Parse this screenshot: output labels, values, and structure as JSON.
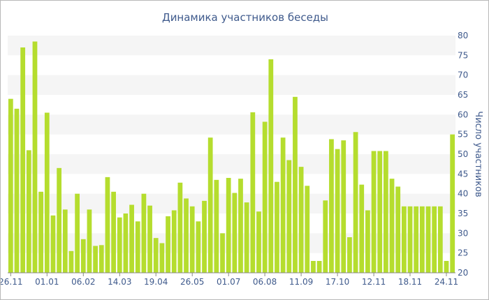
{
  "chart_data": {
    "type": "bar",
    "title": "Динамика участников беседы",
    "xlabel": "",
    "ylabel": "Число участников",
    "ylim": [
      20,
      80
    ],
    "yticks": [
      20,
      25,
      30,
      35,
      40,
      45,
      50,
      55,
      60,
      65,
      70,
      75,
      80
    ],
    "grid": "alternating horizontal bands",
    "tick_labels": [
      "26.11",
      "01.01",
      "06.02",
      "14.03",
      "19.04",
      "26.05",
      "01.07",
      "06.08",
      "11.09",
      "17.10",
      "12.11",
      "18.11",
      "24.11"
    ],
    "tick_bar_index": [
      0,
      6,
      12,
      18,
      24,
      30,
      36,
      42,
      48,
      54,
      60,
      66,
      72
    ],
    "values": [
      64,
      61.5,
      77,
      51,
      78.5,
      40.5,
      60.5,
      34.5,
      46.5,
      36,
      25.5,
      40,
      28.5,
      36,
      26.8,
      27,
      44.2,
      40.5,
      34,
      35,
      37.2,
      33,
      40,
      37,
      28.8,
      27.5,
      34.3,
      35.8,
      42.8,
      38.8,
      36.8,
      33,
      38.2,
      54.2,
      43.5,
      30,
      44,
      40.2,
      43.8,
      37.8,
      60.6,
      35.5,
      58.2,
      74,
      43,
      54.2,
      48.5,
      64.5,
      46.8,
      42,
      23,
      23,
      38.3,
      53.8,
      51.3,
      53.5,
      29,
      55.6,
      42.3,
      35.8,
      50.8,
      50.8,
      50.8,
      43.8,
      41.8,
      36.8,
      36.8,
      36.8,
      36.8,
      36.8,
      36.8,
      36.8,
      23,
      55
    ],
    "colors": {
      "bar": "#b5dd2e",
      "text": "#3f5a8c",
      "band": "#f5f5f5"
    }
  }
}
